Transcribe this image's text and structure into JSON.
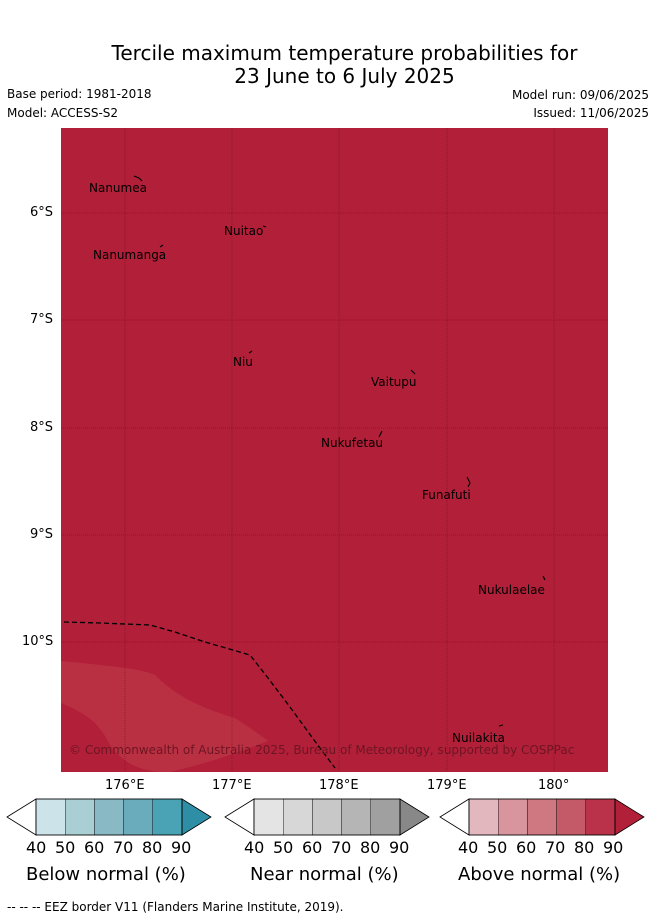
{
  "header": {
    "title_line1": "Tercile maximum temperature probabilities for",
    "title_line2": "23 June to 6 July 2025",
    "base_period": "Base period: 1981-2018",
    "model": "Model: ACCESS-S2",
    "model_run": "Model run: 09/06/2025",
    "issued": "Issued: 11/06/2025"
  },
  "map": {
    "lat_labels": [
      "6°S",
      "7°S",
      "8°S",
      "9°S",
      "10°S"
    ],
    "lon_labels": [
      "176°E",
      "177°E",
      "178°E",
      "179°E",
      "180°"
    ],
    "places": [
      "Nanumea",
      "Nuitao",
      "Nanumanga",
      "Niu",
      "Vaitupu",
      "Nukufetau",
      "Funafuti",
      "Nukulaelae",
      "Nuilakita"
    ],
    "copyright": "© Commonwealth of Australia 2025, Bureau of Meteorology, supported by COSPPac",
    "background_color": "#b11f38",
    "lighter_zone_color": "#ba3043",
    "legend": "upper-category probability ≥ 90% across most of area"
  },
  "colorbars": [
    {
      "title": "Below normal (%)",
      "ticks": [
        "40",
        "50",
        "60",
        "70",
        "80",
        "90"
      ],
      "colors": [
        "#cce3e9",
        "#a9ced4",
        "#8ab9c6",
        "#6aabbc",
        "#4aa3b4",
        "#2e8ea5"
      ]
    },
    {
      "title": "Near normal (%)",
      "ticks": [
        "40",
        "50",
        "60",
        "70",
        "80",
        "90"
      ],
      "colors": [
        "#e4e4e4",
        "#d7d7d7",
        "#c8c8c8",
        "#b5b5b5",
        "#a0a0a0",
        "#888888"
      ]
    },
    {
      "title": "Above normal (%)",
      "ticks": [
        "40",
        "50",
        "60",
        "70",
        "80",
        "90"
      ],
      "colors": [
        "#e2b7bd",
        "#d8959e",
        "#cf7882",
        "#c45a68",
        "#b93249",
        "#b11f38"
      ]
    }
  ],
  "footnote": "--  --  -- EEZ border V11 (Flanders Marine Institute, 2019)."
}
